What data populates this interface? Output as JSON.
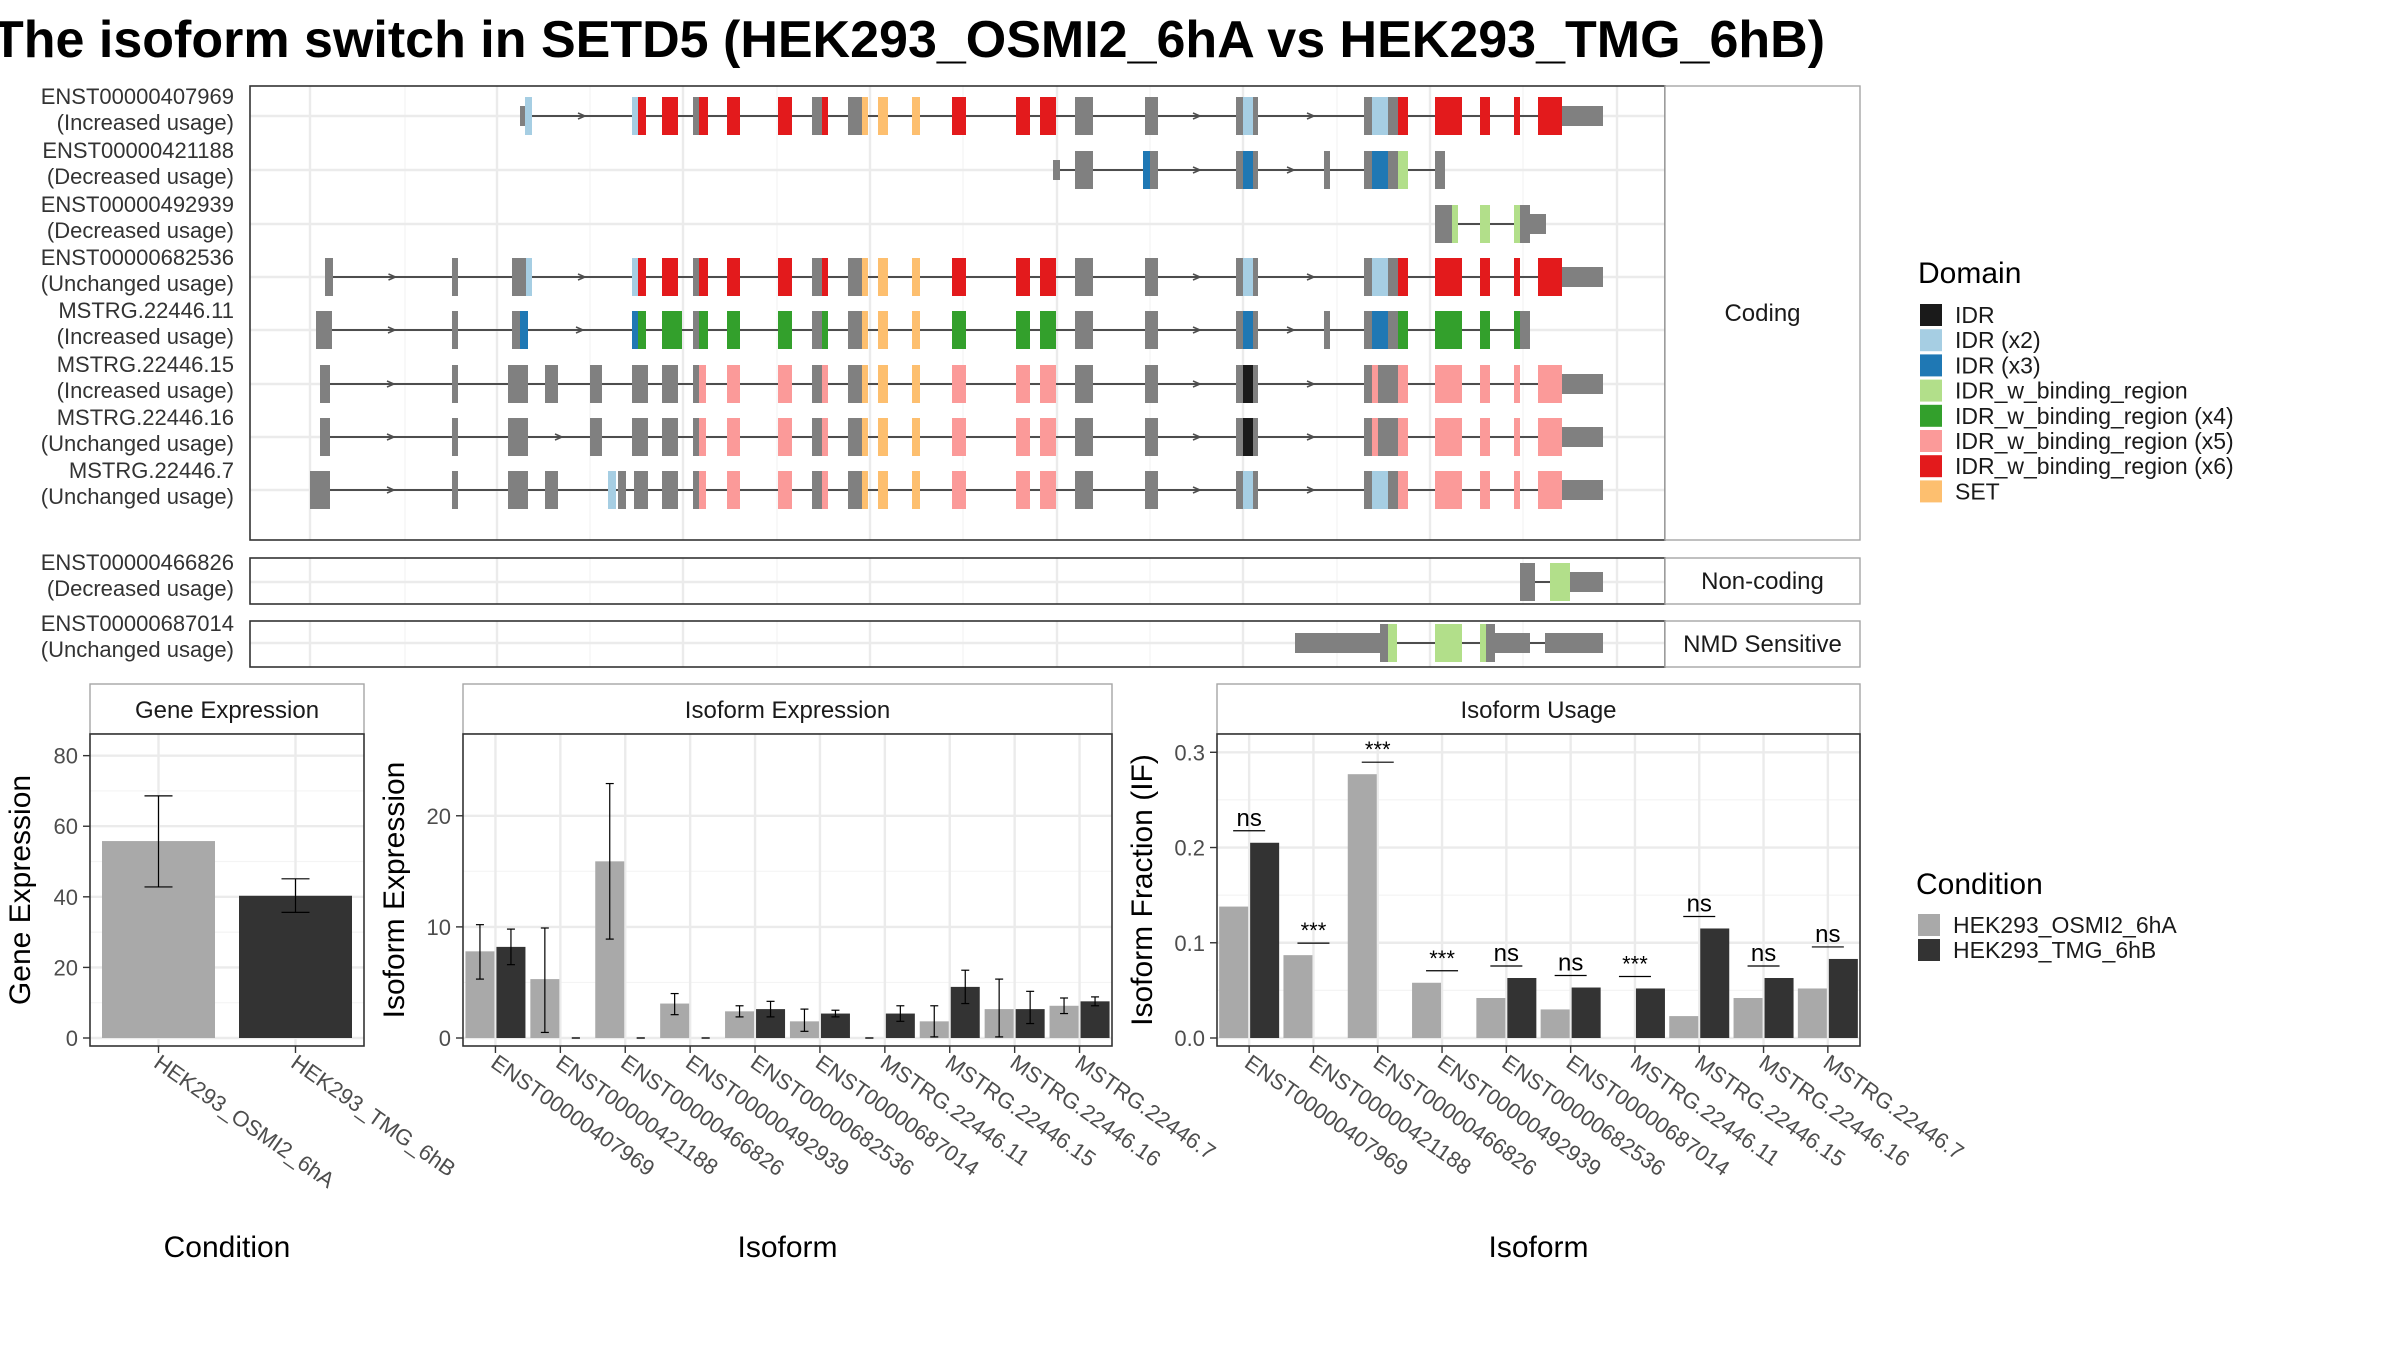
{
  "title": "The isoform switch in SETD5 (HEK293_OSMI2_6hA vs HEK293_TMG_6hB)",
  "colors": {
    "cond_a": "#a9a9a9",
    "cond_b": "#333333",
    "intron": "#4d4d4d",
    "exon": "#808080",
    "grid": "#ebebeb",
    "panel_border": "#333333",
    "strip_border": "#a6a6a6"
  },
  "structure": {
    "groups": [
      {
        "label": "Coding",
        "transcripts": [
          {
            "id": "ENST00000407969",
            "usage": "(Increased usage)"
          },
          {
            "id": "ENST00000421188",
            "usage": "(Decreased usage)"
          },
          {
            "id": "ENST00000492939",
            "usage": "(Decreased usage)"
          },
          {
            "id": "ENST00000682536",
            "usage": "(Unchanged usage)"
          },
          {
            "id": "MSTRG.22446.11",
            "usage": "(Increased usage)"
          },
          {
            "id": "MSTRG.22446.15",
            "usage": "(Increased usage)"
          },
          {
            "id": "MSTRG.22446.16",
            "usage": "(Unchanged usage)"
          },
          {
            "id": "MSTRG.22446.7",
            "usage": "(Unchanged usage)"
          }
        ]
      },
      {
        "label": "Non-coding",
        "transcripts": [
          {
            "id": "ENST00000466826",
            "usage": "(Decreased usage)"
          }
        ]
      },
      {
        "label": "NMD Sensitive",
        "transcripts": [
          {
            "id": "ENST00000687014",
            "usage": "(Unchanged usage)"
          }
        ]
      }
    ]
  },
  "domain_legend": {
    "title": "Domain",
    "items": [
      {
        "label": "IDR",
        "color": "#1a1a1a"
      },
      {
        "label": "IDR (x2)",
        "color": "#a6cee3"
      },
      {
        "label": "IDR (x3)",
        "color": "#1f78b4"
      },
      {
        "label": "IDR_w_binding_region",
        "color": "#b2df8a"
      },
      {
        "label": "IDR_w_binding_region (x4)",
        "color": "#33a02c"
      },
      {
        "label": "IDR_w_binding_region (x5)",
        "color": "#fb9a99"
      },
      {
        "label": "IDR_w_binding_region (x6)",
        "color": "#e31a1c"
      },
      {
        "label": "SET",
        "color": "#fdbf6f"
      }
    ]
  },
  "condition_legend": {
    "title": "Condition",
    "items": [
      "HEK293_OSMI2_6hA",
      "HEK293_TMG_6hB"
    ]
  },
  "chart_data": [
    {
      "type": "bar",
      "panel": "Gene Expression",
      "xlabel": "Condition",
      "ylabel": "Gene Expression",
      "ylim": [
        0,
        85
      ],
      "yticks": [
        0,
        20,
        40,
        60,
        80
      ],
      "categories": [
        "HEK293_OSMI2_6hA",
        "HEK293_TMG_6hB"
      ],
      "values": [
        55.8,
        40.3
      ],
      "error_low": [
        42.8,
        35.6
      ],
      "error_high": [
        68.6,
        45.1
      ]
    },
    {
      "type": "bar",
      "panel": "Isoform Expression",
      "xlabel": "Isoform",
      "ylabel": "Isoform Expression",
      "ylim": [
        0,
        27
      ],
      "yticks": [
        0,
        10,
        20
      ],
      "categories": [
        "ENST00000407969",
        "ENST00000421188",
        "ENST00000466826",
        "ENST00000492939",
        "ENST00000682536",
        "ENST00000687014",
        "MSTRG.22446.11",
        "MSTRG.22446.15",
        "MSTRG.22446.16",
        "MSTRG.22446.7"
      ],
      "series": [
        {
          "name": "HEK293_OSMI2_6hA",
          "values": [
            7.8,
            5.3,
            15.9,
            3.1,
            2.4,
            1.5,
            0,
            1.5,
            2.6,
            2.9
          ],
          "error_low": [
            5.3,
            0.5,
            8.9,
            2.1,
            1.9,
            0.6,
            0,
            0.1,
            0.1,
            2.2
          ],
          "error_high": [
            10.2,
            9.9,
            22.9,
            4.0,
            2.9,
            2.6,
            0,
            2.9,
            5.3,
            3.6
          ]
        },
        {
          "name": "HEK293_TMG_6hB",
          "values": [
            8.2,
            0,
            0,
            0,
            2.6,
            2.2,
            2.2,
            4.6,
            2.6,
            3.3
          ],
          "error_low": [
            6.6,
            0,
            0,
            0,
            1.9,
            1.9,
            1.5,
            3.1,
            1.3,
            2.9
          ],
          "error_high": [
            9.8,
            0,
            0,
            0,
            3.3,
            2.5,
            2.9,
            6.1,
            4.2,
            3.7
          ]
        }
      ]
    },
    {
      "type": "bar",
      "panel": "Isoform Usage",
      "xlabel": "Isoform",
      "ylabel": "Isoform Fraction (IF)",
      "ylim": [
        0,
        0.315
      ],
      "yticks": [
        0.0,
        0.1,
        0.2,
        0.3
      ],
      "ytick_labels": [
        "0.0",
        "0.1",
        "0.2",
        "0.3"
      ],
      "categories": [
        "ENST00000407969",
        "ENST00000421188",
        "ENST00000466826",
        "ENST00000492939",
        "ENST00000682536",
        "ENST00000687014",
        "MSTRG.22446.11",
        "MSTRG.22446.15",
        "MSTRG.22446.16",
        "MSTRG.22446.7"
      ],
      "series": [
        {
          "name": "HEK293_OSMI2_6hA",
          "values": [
            0.138,
            0.087,
            0.277,
            0.058,
            0.042,
            0.03,
            0.0,
            0.023,
            0.042,
            0.052
          ]
        },
        {
          "name": "HEK293_TMG_6hB",
          "values": [
            0.205,
            0.0,
            0.0,
            0.0,
            0.063,
            0.053,
            0.052,
            0.115,
            0.063,
            0.083
          ]
        }
      ],
      "significance": [
        "ns",
        "***",
        "***",
        "***",
        "ns",
        "ns",
        "***",
        "ns",
        "ns",
        "ns"
      ]
    }
  ]
}
